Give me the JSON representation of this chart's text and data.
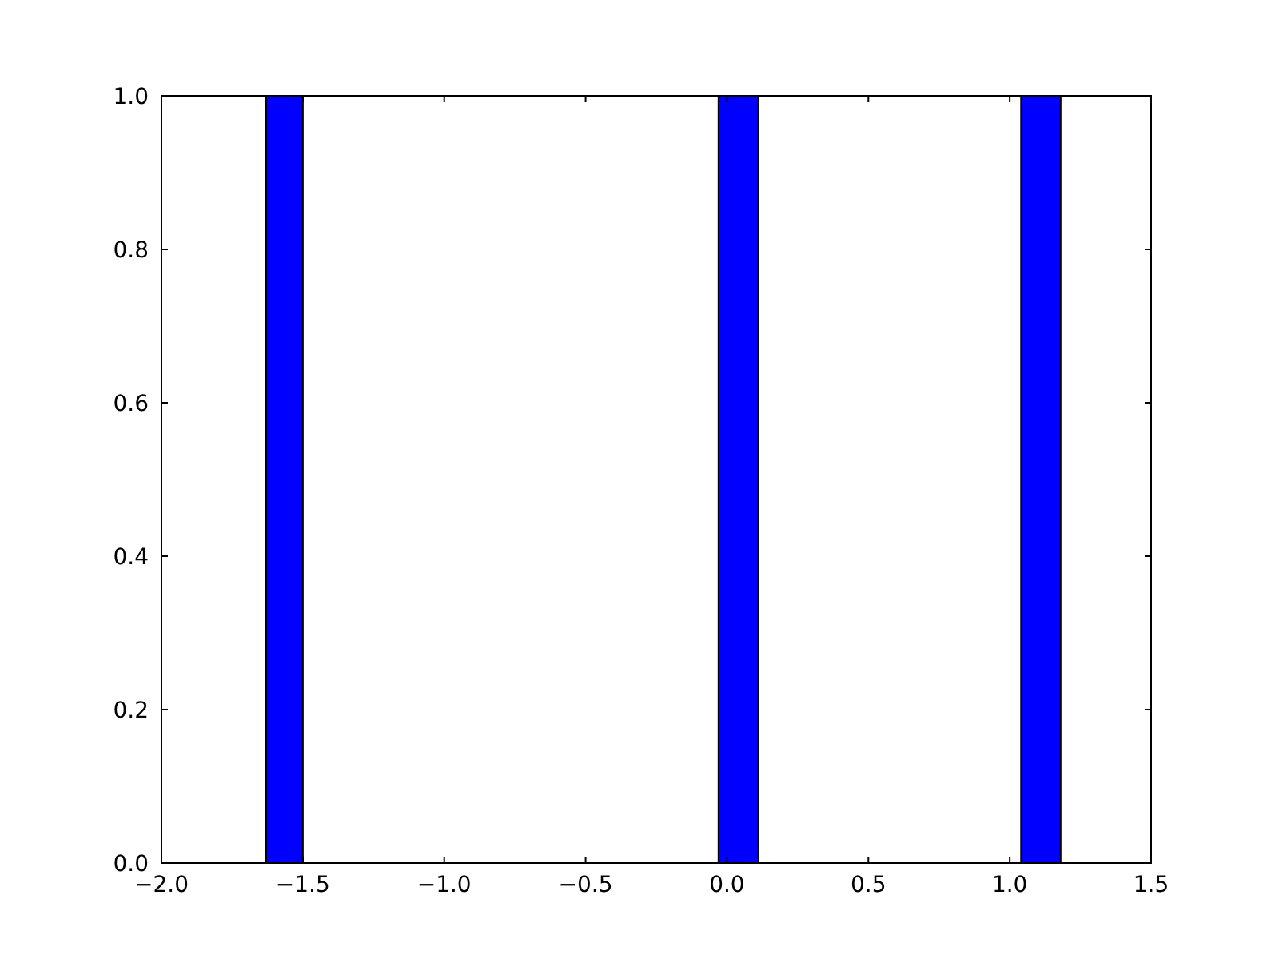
{
  "chart_data": {
    "type": "histogram",
    "bins": [
      -1.63,
      -1.5,
      -0.03,
      0.11,
      1.04,
      1.18
    ],
    "values": [
      1,
      0,
      1,
      0,
      1
    ],
    "color": "#0000ff",
    "xlim": [
      -2,
      1.5
    ],
    "xticks": [
      {
        "value": -2,
        "label": "−2.0"
      },
      {
        "value": -1.5,
        "label": "−1.5"
      },
      {
        "value": -1,
        "label": "−1.0"
      },
      {
        "value": -0.5,
        "label": "−0.5"
      },
      {
        "value": 0,
        "label": "0.0"
      },
      {
        "value": 0.5,
        "label": "0.5"
      },
      {
        "value": 1,
        "label": "1.0"
      },
      {
        "value": 1.5,
        "label": "1.5"
      }
    ],
    "ylim": [
      0,
      1
    ],
    "yticks": [
      {
        "value": 0,
        "label": "0.0"
      },
      {
        "value": 0.2,
        "label": "0.2"
      },
      {
        "value": 0.4,
        "label": "0.4"
      },
      {
        "value": 0.6,
        "label": "0.6"
      },
      {
        "value": 0.8,
        "label": "0.8"
      },
      {
        "value": 1,
        "label": "1.0"
      }
    ]
  }
}
